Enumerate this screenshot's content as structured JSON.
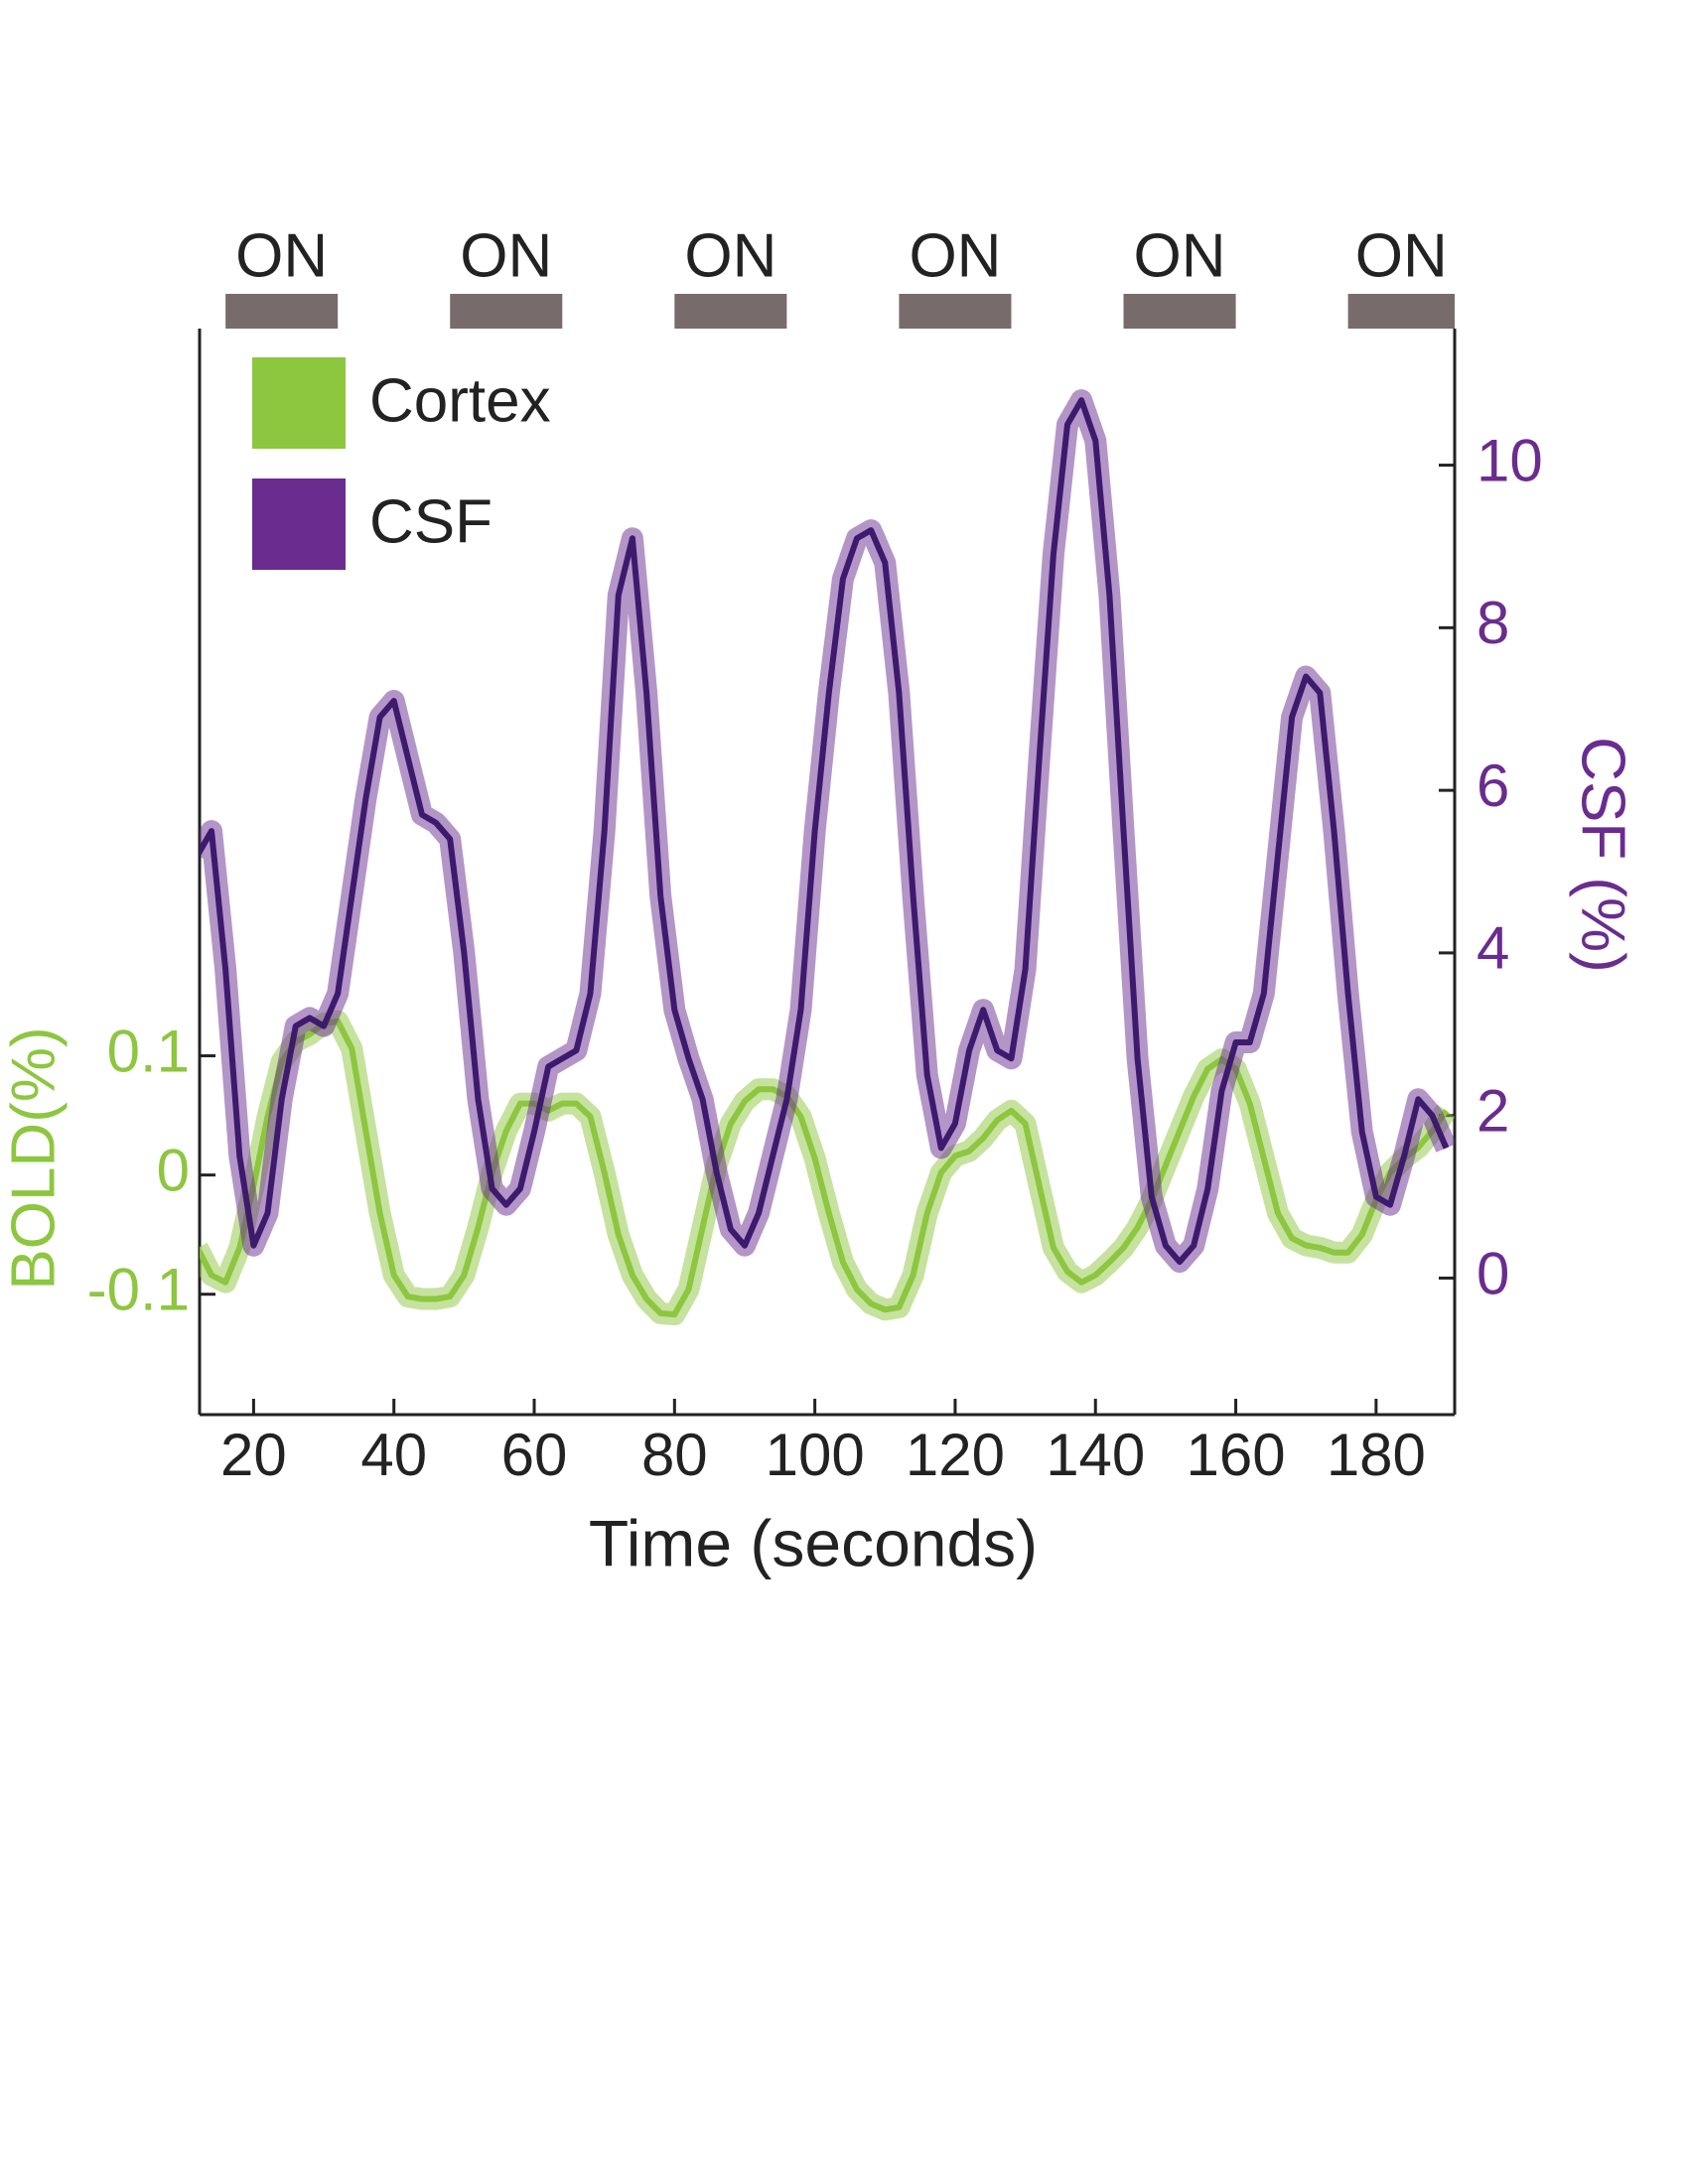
{
  "chart_data": {
    "type": "line",
    "xlabel": "Time (seconds)",
    "ylabel": "BOLD(%)",
    "y2label": "CSF (%)",
    "xlim": [
      12.3,
      191.2
    ],
    "xticks": [
      20,
      40,
      60,
      80,
      100,
      120,
      140,
      160,
      180
    ],
    "ylim": [
      -0.201,
      0.71
    ],
    "yticks": [
      -0.1,
      0,
      0.1
    ],
    "y2lim": [
      -1.68,
      11.68
    ],
    "y2ticks": [
      0,
      2,
      4,
      6,
      8,
      10
    ],
    "stimulus": {
      "color": "#776b6b",
      "blocks": [
        {
          "label": "ON",
          "start": 16,
          "end": 32
        },
        {
          "label": "ON",
          "start": 48,
          "end": 64
        },
        {
          "label": "ON",
          "start": 80,
          "end": 96
        },
        {
          "label": "ON",
          "start": 112,
          "end": 128
        },
        {
          "label": "ON",
          "start": 144,
          "end": 160
        },
        {
          "label": "ON",
          "start": 176,
          "end": 191.2
        }
      ]
    },
    "legend": "upper left",
    "x": [
      12,
      14,
      16,
      18,
      20,
      22,
      24,
      26,
      28,
      30,
      32,
      34,
      36,
      38,
      40,
      42,
      44,
      46,
      48,
      50,
      52,
      54,
      56,
      58,
      60,
      62,
      64,
      66,
      68,
      70,
      72,
      74,
      76,
      78,
      80,
      82,
      84,
      86,
      88,
      90,
      92,
      94,
      96,
      98,
      100,
      102,
      104,
      106,
      108,
      110,
      112,
      114,
      116,
      118,
      120,
      122,
      124,
      126,
      128,
      130,
      132,
      134,
      136,
      138,
      140,
      142,
      144,
      146,
      148,
      150,
      152,
      154,
      156,
      158,
      160,
      162,
      164,
      166,
      168,
      170,
      172,
      174,
      176,
      178,
      180,
      182,
      184,
      186,
      188,
      190
    ],
    "series": [
      {
        "name": "Cortex",
        "color": "#8dc63f",
        "axis": "y",
        "values": [
          -0.061,
          -0.084,
          -0.09,
          -0.061,
          -0.009,
          0.049,
          0.095,
          0.112,
          0.118,
          0.127,
          0.129,
          0.106,
          0.037,
          -0.032,
          -0.084,
          -0.102,
          -0.104,
          -0.104,
          -0.102,
          -0.084,
          -0.044,
          0.002,
          0.037,
          0.06,
          0.06,
          0.054,
          0.06,
          0.06,
          0.049,
          0.002,
          -0.05,
          -0.084,
          -0.104,
          -0.116,
          -0.117,
          -0.096,
          -0.044,
          0.008,
          0.043,
          0.062,
          0.072,
          0.072,
          0.066,
          0.049,
          0.014,
          -0.032,
          -0.073,
          -0.096,
          -0.108,
          -0.113,
          -0.111,
          -0.084,
          -0.032,
          0.002,
          0.016,
          0.02,
          0.031,
          0.046,
          0.054,
          0.043,
          -0.009,
          -0.061,
          -0.081,
          -0.09,
          -0.084,
          -0.073,
          -0.061,
          -0.044,
          -0.021,
          0.008,
          0.037,
          0.066,
          0.089,
          0.097,
          0.089,
          0.06,
          0.014,
          -0.032,
          -0.053,
          -0.059,
          -0.061,
          -0.065,
          -0.065,
          -0.05,
          -0.021,
          0.002,
          0.014,
          0.023,
          0.037,
          0.054
        ]
      },
      {
        "name": "CSF",
        "color": "#6a2c8f",
        "line_color": "#3d1a6e",
        "axis": "y2",
        "values": [
          5.2,
          5.5,
          3.8,
          1.5,
          0.4,
          0.8,
          2.2,
          3.1,
          3.2,
          3.1,
          3.5,
          4.7,
          5.9,
          6.9,
          7.1,
          6.4,
          5.7,
          5.6,
          5.4,
          4.0,
          2.2,
          1.1,
          0.9,
          1.1,
          1.8,
          2.6,
          2.7,
          2.8,
          3.5,
          5.5,
          8.4,
          9.1,
          7.2,
          4.7,
          3.3,
          2.7,
          2.2,
          1.3,
          0.6,
          0.4,
          0.8,
          1.5,
          2.2,
          3.3,
          5.5,
          7.2,
          8.6,
          9.1,
          9.2,
          8.8,
          7.2,
          4.7,
          2.5,
          1.6,
          1.9,
          2.8,
          3.3,
          2.8,
          2.7,
          3.8,
          6.4,
          8.9,
          10.5,
          10.8,
          10.3,
          8.4,
          5.5,
          2.7,
          1.0,
          0.4,
          0.2,
          0.4,
          1.1,
          2.3,
          2.9,
          2.9,
          3.5,
          5.2,
          6.9,
          7.4,
          7.2,
          5.5,
          3.5,
          1.8,
          1.0,
          0.9,
          1.5,
          2.2,
          2.0,
          1.6
        ]
      }
    ]
  }
}
